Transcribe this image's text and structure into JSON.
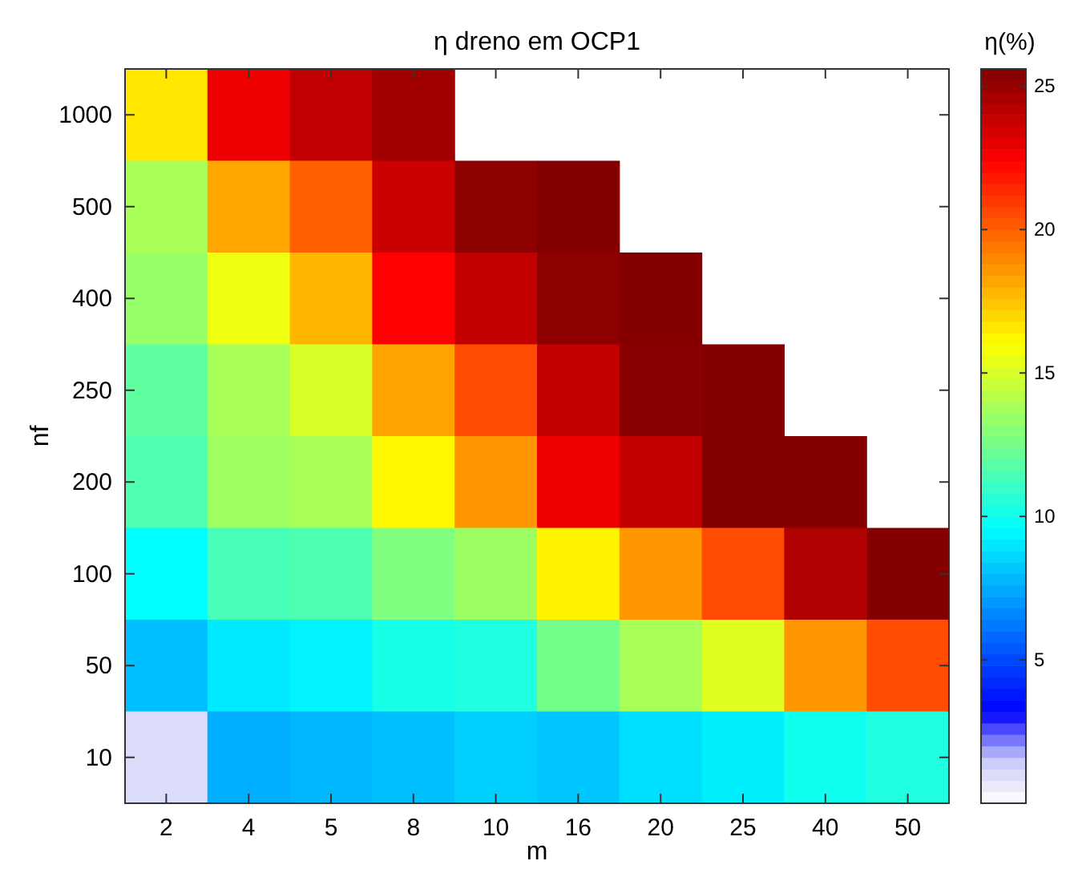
{
  "chart_data": {
    "type": "heatmap",
    "title": "η dreno em OCP1",
    "xlabel": "m",
    "ylabel": "nf",
    "clabel": "η(%)",
    "categories": [
      "2",
      "4",
      "5",
      "8",
      "10",
      "16",
      "20",
      "25",
      "40",
      "50"
    ],
    "y_categories": [
      "1000",
      "500",
      "400",
      "250",
      "200",
      "100",
      "50",
      "10"
    ],
    "cells": [
      [
        16.6,
        22.8,
        24,
        24.8,
        null,
        null,
        null,
        null,
        null,
        null
      ],
      [
        13.8,
        18.2,
        20,
        23.7,
        25.3,
        25.5,
        null,
        null,
        null,
        null
      ],
      [
        13.4,
        15.6,
        17.8,
        22.4,
        23.9,
        25.3,
        25.5,
        null,
        null,
        null
      ],
      [
        12,
        13.8,
        15,
        18.3,
        20.5,
        23.9,
        25.4,
        25.5,
        null,
        null
      ],
      [
        11.6,
        13.6,
        13.8,
        16.2,
        18.6,
        22.8,
        23.9,
        25.5,
        25.5,
        null
      ],
      [
        9.6,
        11.4,
        11.5,
        12.8,
        13.5,
        16.3,
        18.6,
        20.5,
        24.4,
        25.5
      ],
      [
        8,
        9.1,
        9.3,
        10.2,
        10.4,
        12.5,
        13.8,
        15.2,
        18.6,
        20.5
      ],
      [
        1,
        7.6,
        7.8,
        8,
        8.4,
        8.2,
        8.8,
        9.2,
        10,
        10.4
      ]
    ],
    "clim": [
      0,
      25.6
    ],
    "cticks": [
      5,
      10,
      15,
      20,
      25
    ]
  }
}
